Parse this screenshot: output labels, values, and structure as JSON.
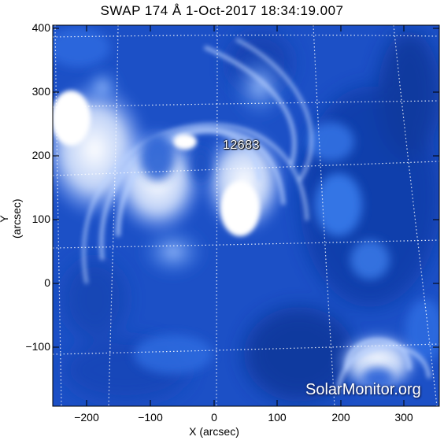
{
  "title": "SWAP 174 Å  1-Oct-2017 18:34:19.007",
  "x_axis": {
    "label": "X (arcsec)",
    "ticks": [
      "−200",
      "−100",
      "0",
      "100",
      "200",
      "300"
    ]
  },
  "y_axis": {
    "label": "Y (arcsec)",
    "ticks": [
      "400",
      "300",
      "200",
      "100",
      "0",
      "−100"
    ]
  },
  "region_label": "12683",
  "watermark": "SolarMonitor.org",
  "colors": {
    "deep_blue": "#0c3aa8",
    "mid_blue": "#2a6de0",
    "bright_blue": "#8fb8ff",
    "white": "#ffffff"
  }
}
